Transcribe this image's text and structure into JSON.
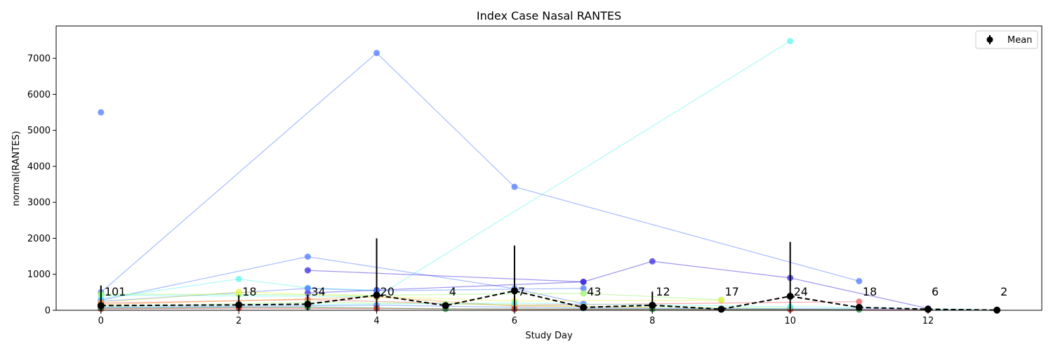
{
  "chart_data": {
    "type": "line",
    "title": "Index Case Nasal RANTES",
    "xlabel": "Study Day",
    "ylabel": "normal(RANTES)",
    "xlim": [
      -0.65,
      13.65
    ],
    "ylim": [
      0,
      7900
    ],
    "xticks": [
      0,
      2,
      4,
      6,
      8,
      10,
      12
    ],
    "yticks": [
      0,
      1000,
      2000,
      3000,
      4000,
      5000,
      6000,
      7000
    ],
    "grid": false,
    "legend": {
      "position": "top-right",
      "entries": [
        "Mean"
      ]
    },
    "mean_series": {
      "name": "Mean",
      "color": "#000000",
      "x": [
        0,
        2,
        3,
        4,
        5,
        6,
        7,
        8,
        9,
        10,
        11,
        12,
        13
      ],
      "y": [
        130,
        150,
        170,
        420,
        130,
        540,
        80,
        140,
        30,
        390,
        80,
        30,
        5
      ],
      "err": [
        560,
        270,
        270,
        1580,
        0,
        1260,
        0,
        380,
        0,
        1510,
        0,
        0,
        0
      ]
    },
    "count_labels": {
      "x": [
        0,
        2,
        3,
        4,
        5,
        6,
        7,
        8,
        9,
        10,
        11,
        12,
        13
      ],
      "labels": [
        "101",
        "18",
        "34",
        "20",
        "4",
        "7",
        "43",
        "12",
        "17",
        "24",
        "18",
        "6",
        "2"
      ]
    },
    "subject_series": [
      {
        "color": "#4f7bff",
        "x": [
          0,
          4,
          6,
          11
        ],
        "y": [
          500,
          7150,
          3430,
          810
        ]
      },
      {
        "color": "#4f7bff",
        "x": [
          0
        ],
        "y": [
          5500
        ]
      },
      {
        "color": "#5ff5f0",
        "x": [
          0,
          4,
          10
        ],
        "y": [
          420,
          380,
          7480
        ]
      },
      {
        "color": "#4f7bff",
        "x": [
          0,
          3,
          6,
          7
        ],
        "y": [
          280,
          1490,
          600,
          180
        ]
      },
      {
        "color": "#3a2be0",
        "x": [
          3,
          7,
          8,
          10,
          12
        ],
        "y": [
          1110,
          790,
          1360,
          900,
          50
        ]
      },
      {
        "color": "#5ff5f0",
        "x": [
          0,
          2,
          3,
          4
        ],
        "y": [
          320,
          870,
          620,
          560
        ]
      },
      {
        "color": "#3a2be0",
        "x": [
          3,
          4,
          7
        ],
        "y": [
          480,
          560,
          790
        ]
      },
      {
        "color": "#4f7bff",
        "x": [
          0,
          3,
          4,
          7
        ],
        "y": [
          250,
          610,
          540,
          610
        ]
      },
      {
        "color": "#9bf56e",
        "x": [
          0,
          2,
          4,
          7,
          9
        ],
        "y": [
          450,
          440,
          420,
          470,
          290
        ]
      },
      {
        "color": "#eaf24a",
        "x": [
          0,
          2,
          6,
          9
        ],
        "y": [
          220,
          510,
          260,
          280
        ]
      },
      {
        "color": "#f05a5a",
        "x": [
          0,
          3,
          6,
          11
        ],
        "y": [
          200,
          300,
          140,
          240
        ]
      },
      {
        "color": "#f5a623",
        "x": [
          0,
          4,
          6,
          8
        ],
        "y": [
          160,
          370,
          120,
          80
        ]
      },
      {
        "color": "#9bf56e",
        "x": [
          0,
          3,
          5,
          7,
          10
        ],
        "y": [
          100,
          220,
          180,
          110,
          60
        ]
      },
      {
        "color": "#4f7bff",
        "x": [
          0,
          4,
          7,
          12
        ],
        "y": [
          80,
          140,
          60,
          30
        ]
      },
      {
        "color": "#e02020",
        "x": [
          0,
          2,
          4,
          6,
          10,
          12
        ],
        "y": [
          40,
          60,
          50,
          30,
          20,
          10
        ]
      },
      {
        "color": "#1a8f3a",
        "x": [
          0,
          3,
          5,
          8,
          11
        ],
        "y": [
          60,
          90,
          40,
          30,
          20
        ]
      },
      {
        "color": "#5ff5f0",
        "x": [
          0,
          6,
          10,
          13
        ],
        "y": [
          120,
          200,
          100,
          10
        ]
      }
    ]
  }
}
